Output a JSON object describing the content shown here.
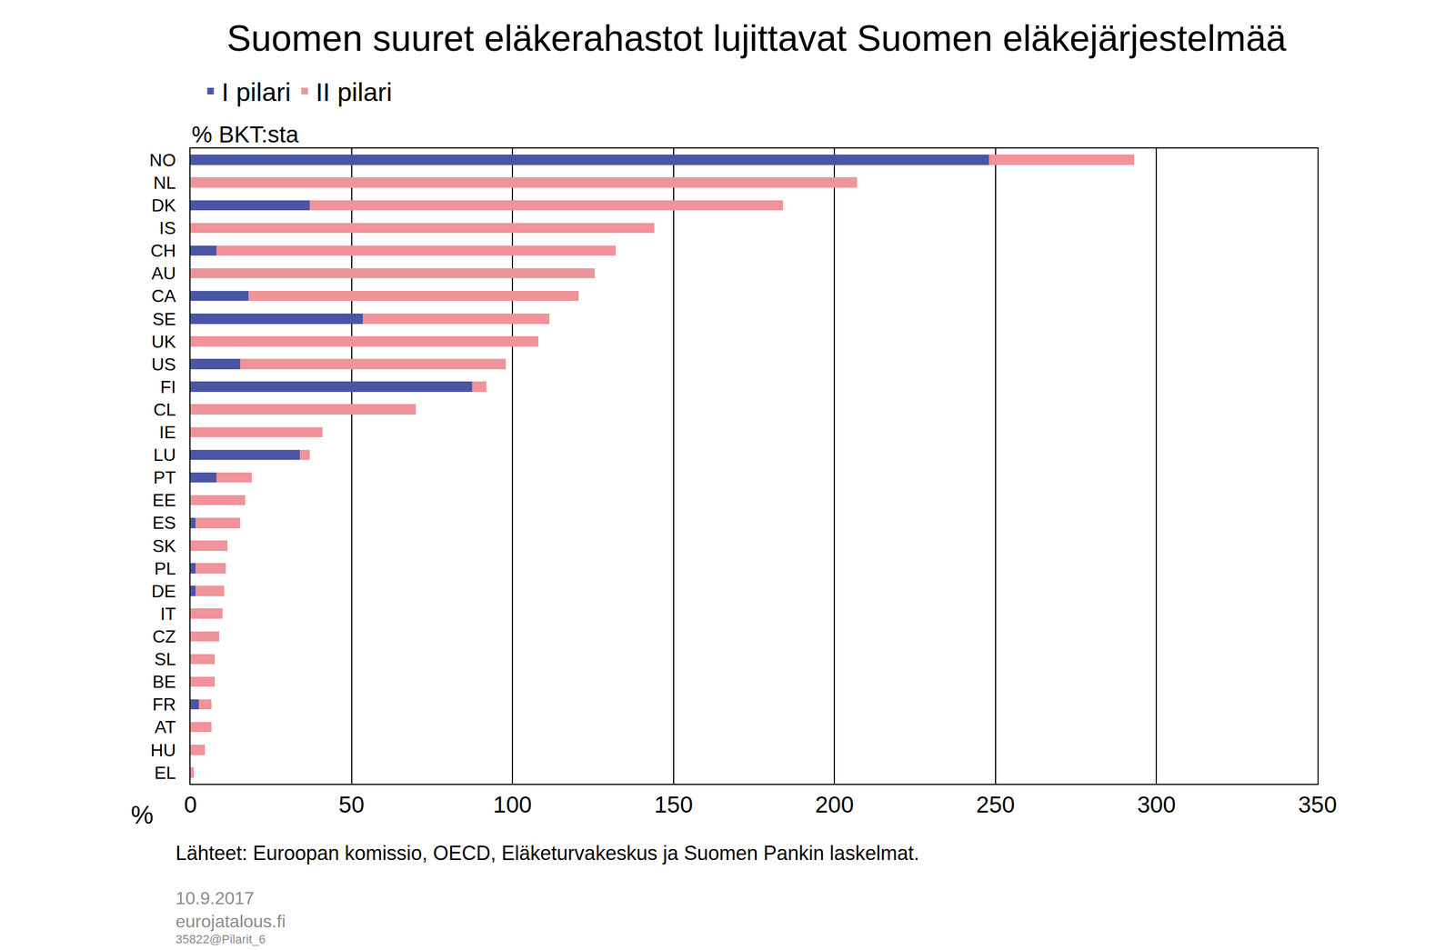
{
  "chart_data": {
    "type": "bar",
    "orientation": "horizontal",
    "stacked": true,
    "title": "Suomen suuret eläkerahastot lujittavat Suomen eläkejärjestelmää",
    "subtitle": "% BKT:sta",
    "xlabel": "%",
    "source": "Lähteet: Euroopan komissio, OECD, Eläketurvakeskus ja Suomen Pankin laskelmat.",
    "annotations": [
      "10.9.2017",
      "eurojatalous.fi",
      "35822@Pilarit_6"
    ],
    "categories": [
      "NO",
      "NL",
      "DK",
      "IS",
      "CH",
      "AU",
      "CA",
      "SE",
      "UK",
      "US",
      "FI",
      "CL",
      "IE",
      "LU",
      "PT",
      "EE",
      "ES",
      "SK",
      "PL",
      "DE",
      "IT",
      "CZ",
      "SL",
      "BE",
      "FR",
      "AT",
      "HU",
      "EL"
    ],
    "series": [
      {
        "name": "I pilari",
        "color": "#4b55a5",
        "values": [
          248,
          0,
          37,
          0,
          8,
          0,
          18,
          53.5,
          0,
          15.5,
          87.5,
          0,
          0,
          34,
          8,
          0,
          1.5,
          0,
          1.5,
          1.5,
          0,
          0,
          0,
          0,
          2.5,
          0,
          0,
          0
        ]
      },
      {
        "name": "II pilari",
        "color": "#f0939a",
        "values": [
          45,
          207,
          147,
          144,
          124,
          125.5,
          102.5,
          58,
          108,
          82.5,
          4.5,
          70,
          41,
          3,
          11,
          17,
          14,
          11.5,
          9.5,
          9,
          10,
          9,
          7.5,
          7.5,
          4,
          6.5,
          4.5,
          1
        ]
      }
    ],
    "xlim": [
      0,
      350
    ],
    "xticks": [
      0,
      50,
      100,
      150,
      200,
      250,
      300,
      350
    ],
    "grid": true,
    "legend": "top left"
  }
}
